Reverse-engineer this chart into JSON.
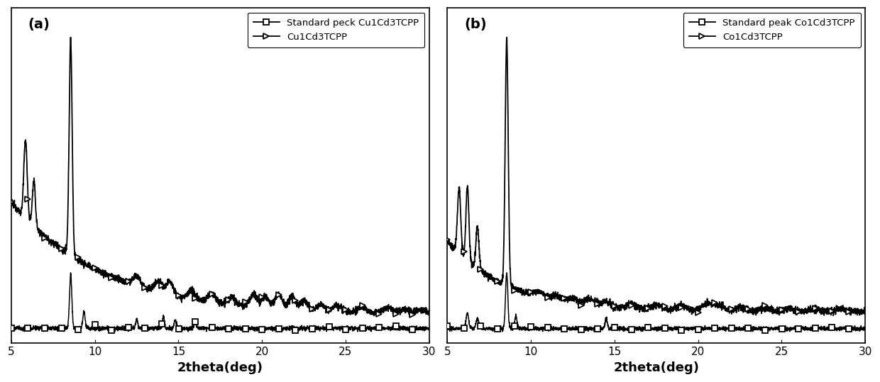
{
  "panel_a": {
    "label": "(a)",
    "xlabel": "2theta(deg)",
    "legend1": "Standard peck Cu1Cd3TCPP",
    "legend2": "Cu1Cd3TCPP"
  },
  "panel_b": {
    "label": "(b)",
    "xlabel": "2theta(deg)",
    "legend1": "Standard peak Co1Cd3TCPP",
    "legend2": "Co1Cd3TCPP"
  },
  "xlim": [
    5,
    30
  ],
  "xticks": [
    5,
    10,
    15,
    20,
    25,
    30
  ],
  "line_color": "#000000",
  "background_color": "#ffffff",
  "fontsize_xlabel": 13,
  "fontsize_legend": 9.5,
  "fontsize_panel": 14
}
